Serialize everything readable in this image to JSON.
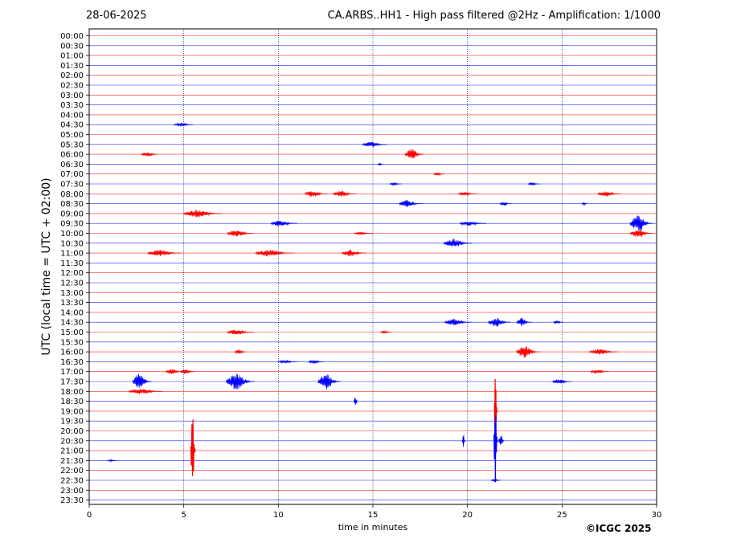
{
  "header": {
    "date": "28-06-2025",
    "title": "CA.ARBS..HH1 - High pass filtered @2Hz - Amplification: 1/1000"
  },
  "copyright": "©ICGC 2025",
  "colors": {
    "red": "#ff0000",
    "blue": "#0000ff",
    "axis": "#000000",
    "grid": "#000080"
  },
  "chart_data": {
    "type": "line",
    "subtype": "helicorder",
    "title": "CA.ARBS..HH1 - High pass filtered @2Hz - Amplification: 1/1000",
    "xlabel": "time in minutes",
    "ylabel": "UTC (local time = UTC + 02:00)",
    "xlim": [
      0,
      30
    ],
    "x_ticks": [
      0,
      5,
      10,
      15,
      20,
      25,
      30
    ],
    "grid": "vertical dotted at x ticks",
    "trace_colors": [
      "red",
      "blue"
    ],
    "rows": [
      "00:00",
      "00:30",
      "01:00",
      "01:30",
      "02:00",
      "02:30",
      "03:00",
      "03:30",
      "04:00",
      "04:30",
      "05:00",
      "05:30",
      "06:00",
      "06:30",
      "07:00",
      "07:30",
      "08:00",
      "08:30",
      "09:00",
      "09:30",
      "10:00",
      "10:30",
      "11:00",
      "11:30",
      "12:00",
      "12:30",
      "13:00",
      "13:30",
      "14:00",
      "14:30",
      "15:00",
      "15:30",
      "16:00",
      "16:30",
      "17:00",
      "17:30",
      "18:00",
      "18:30",
      "19:00",
      "19:30",
      "20:00",
      "20:30",
      "21:00",
      "21:30",
      "22:00",
      "22:30",
      "23:00",
      "23:30"
    ],
    "events": [
      {
        "row": "04:30",
        "x": 5.0,
        "amp": 0.2,
        "dur": 1.0
      },
      {
        "row": "05:30",
        "x": 15.1,
        "amp": 0.3,
        "dur": 1.3
      },
      {
        "row": "06:00",
        "x": 3.2,
        "amp": 0.25,
        "dur": 0.9
      },
      {
        "row": "06:00",
        "x": 17.2,
        "amp": 0.55,
        "dur": 1.0
      },
      {
        "row": "06:30",
        "x": 15.4,
        "amp": 0.15,
        "dur": 0.3
      },
      {
        "row": "07:00",
        "x": 18.5,
        "amp": 0.15,
        "dur": 0.6
      },
      {
        "row": "07:30",
        "x": 16.2,
        "amp": 0.15,
        "dur": 0.6
      },
      {
        "row": "07:30",
        "x": 23.5,
        "amp": 0.15,
        "dur": 0.6
      },
      {
        "row": "08:00",
        "x": 12.0,
        "amp": 0.35,
        "dur": 1.2
      },
      {
        "row": "08:00",
        "x": 13.5,
        "amp": 0.3,
        "dur": 1.2
      },
      {
        "row": "08:00",
        "x": 20.0,
        "amp": 0.2,
        "dur": 1.0
      },
      {
        "row": "08:00",
        "x": 27.5,
        "amp": 0.3,
        "dur": 1.2
      },
      {
        "row": "08:30",
        "x": 17.0,
        "amp": 0.4,
        "dur": 1.2
      },
      {
        "row": "08:30",
        "x": 22.0,
        "amp": 0.2,
        "dur": 0.6
      },
      {
        "row": "08:30",
        "x": 26.2,
        "amp": 0.15,
        "dur": 0.3
      },
      {
        "row": "09:00",
        "x": 6.0,
        "amp": 0.4,
        "dur": 2.0
      },
      {
        "row": "09:30",
        "x": 10.3,
        "amp": 0.3,
        "dur": 1.4
      },
      {
        "row": "09:30",
        "x": 20.3,
        "amp": 0.25,
        "dur": 1.4
      },
      {
        "row": "09:30",
        "x": 29.2,
        "amp": 0.9,
        "dur": 1.2
      },
      {
        "row": "10:00",
        "x": 8.0,
        "amp": 0.35,
        "dur": 1.4
      },
      {
        "row": "10:00",
        "x": 14.5,
        "amp": 0.15,
        "dur": 1.0
      },
      {
        "row": "10:00",
        "x": 29.2,
        "amp": 0.45,
        "dur": 1.2
      },
      {
        "row": "10:30",
        "x": 19.5,
        "amp": 0.45,
        "dur": 1.5
      },
      {
        "row": "11:00",
        "x": 4.0,
        "amp": 0.35,
        "dur": 1.8
      },
      {
        "row": "11:00",
        "x": 9.8,
        "amp": 0.35,
        "dur": 2.0
      },
      {
        "row": "11:00",
        "x": 14.0,
        "amp": 0.35,
        "dur": 1.3
      },
      {
        "row": "14:30",
        "x": 19.5,
        "amp": 0.35,
        "dur": 1.4
      },
      {
        "row": "14:30",
        "x": 21.7,
        "amp": 0.45,
        "dur": 1.2
      },
      {
        "row": "14:30",
        "x": 23.0,
        "amp": 0.45,
        "dur": 0.8
      },
      {
        "row": "14:30",
        "x": 24.8,
        "amp": 0.2,
        "dur": 0.5
      },
      {
        "row": "15:00",
        "x": 8.0,
        "amp": 0.3,
        "dur": 1.4
      },
      {
        "row": "15:00",
        "x": 15.7,
        "amp": 0.15,
        "dur": 0.6
      },
      {
        "row": "16:00",
        "x": 8.0,
        "amp": 0.25,
        "dur": 0.6
      },
      {
        "row": "16:00",
        "x": 23.2,
        "amp": 0.7,
        "dur": 1.2
      },
      {
        "row": "16:00",
        "x": 27.2,
        "amp": 0.3,
        "dur": 1.5
      },
      {
        "row": "16:30",
        "x": 10.5,
        "amp": 0.15,
        "dur": 1.0
      },
      {
        "row": "16:30",
        "x": 12.0,
        "amp": 0.2,
        "dur": 0.8
      },
      {
        "row": "17:00",
        "x": 4.5,
        "amp": 0.3,
        "dur": 0.9
      },
      {
        "row": "17:00",
        "x": 5.2,
        "amp": 0.25,
        "dur": 0.8
      },
      {
        "row": "17:00",
        "x": 27.0,
        "amp": 0.2,
        "dur": 1.0
      },
      {
        "row": "17:30",
        "x": 2.8,
        "amp": 0.85,
        "dur": 1.0
      },
      {
        "row": "17:30",
        "x": 8.0,
        "amp": 0.85,
        "dur": 1.5
      },
      {
        "row": "17:30",
        "x": 12.7,
        "amp": 0.8,
        "dur": 1.2
      },
      {
        "row": "17:30",
        "x": 25.0,
        "amp": 0.25,
        "dur": 1.0
      },
      {
        "row": "18:00",
        "x": 3.0,
        "amp": 0.3,
        "dur": 1.8
      },
      {
        "row": "18:30",
        "x": 14.1,
        "amp": 0.7,
        "dur": 0.2
      },
      {
        "row": "19:00",
        "x": 21.5,
        "amp": 4.2,
        "dur": 0.15
      },
      {
        "row": "20:30",
        "x": 19.8,
        "amp": 0.9,
        "dur": 0.15
      },
      {
        "row": "20:30",
        "x": 21.5,
        "amp": 4.6,
        "dur": 0.2
      },
      {
        "row": "20:30",
        "x": 21.8,
        "amp": 0.8,
        "dur": 0.3
      },
      {
        "row": "21:00",
        "x": 5.5,
        "amp": 4.3,
        "dur": 0.25
      },
      {
        "row": "21:30",
        "x": 1.2,
        "amp": 0.1,
        "dur": 0.5
      },
      {
        "row": "22:30",
        "x": 21.5,
        "amp": 0.15,
        "dur": 0.5
      }
    ]
  }
}
